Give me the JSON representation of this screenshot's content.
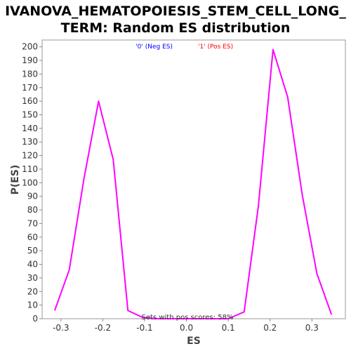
{
  "chart_data": {
    "type": "line",
    "title_lines": [
      "IVANOVA_HEMATOPOIESIS_STEM_CELL_LONG_",
      "TERM: Random ES distribution"
    ],
    "xlabel": "ES",
    "ylabel": "P(ES)",
    "xlim": [
      -0.345,
      0.38
    ],
    "ylim": [
      0,
      205
    ],
    "x_ticks": [
      -0.3,
      -0.2,
      -0.1,
      0.0,
      0.1,
      0.2,
      0.3
    ],
    "x_tick_labels": [
      "-0.3",
      "-0.2",
      "-0.1",
      "0.0",
      "0.1",
      "0.2",
      "0.3"
    ],
    "y_ticks": [
      0,
      10,
      20,
      30,
      40,
      50,
      60,
      70,
      80,
      90,
      100,
      110,
      120,
      130,
      140,
      150,
      160,
      170,
      180,
      190,
      200
    ],
    "y_tick_labels": [
      "0",
      "10",
      "20",
      "30",
      "40",
      "50",
      "60",
      "70",
      "80",
      "90",
      "100",
      "110",
      "120",
      "130",
      "140",
      "150",
      "160",
      "170",
      "180",
      "190",
      "200"
    ],
    "legend": {
      "placement": "top-center",
      "entries": [
        {
          "label": "'0' (Neg ES)",
          "color": "#0000ff"
        },
        {
          "label": "'1' (Pos ES)",
          "color": "#ff0000"
        }
      ]
    },
    "annotation": "Sets with pos scores: 58%",
    "series": [
      {
        "color": "#ff00ff",
        "points": [
          {
            "x": -0.315,
            "y": 6
          },
          {
            "x": -0.28,
            "y": 36
          },
          {
            "x": -0.245,
            "y": 103
          },
          {
            "x": -0.21,
            "y": 160
          },
          {
            "x": -0.175,
            "y": 117
          },
          {
            "x": -0.14,
            "y": 6
          },
          {
            "x": -0.105,
            "y": 1
          },
          {
            "x": -0.07,
            "y": 0
          },
          {
            "x": -0.035,
            "y": 0
          },
          {
            "x": 0.0,
            "y": 0
          },
          {
            "x": 0.035,
            "y": 0
          },
          {
            "x": 0.07,
            "y": 0
          },
          {
            "x": 0.1,
            "y": 0
          },
          {
            "x": 0.138,
            "y": 5
          },
          {
            "x": 0.172,
            "y": 83
          },
          {
            "x": 0.207,
            "y": 198
          },
          {
            "x": 0.242,
            "y": 163
          },
          {
            "x": 0.277,
            "y": 91
          },
          {
            "x": 0.312,
            "y": 33
          },
          {
            "x": 0.347,
            "y": 3
          }
        ]
      }
    ]
  }
}
